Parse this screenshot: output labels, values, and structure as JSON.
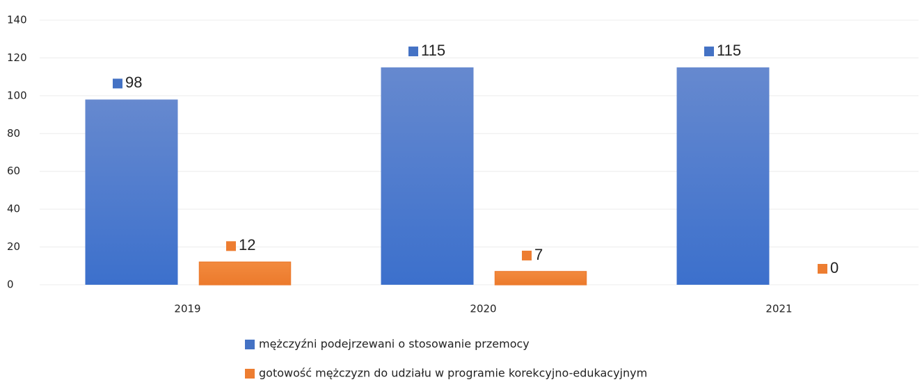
{
  "chart_data": {
    "type": "bar",
    "categories": [
      "2019",
      "2020",
      "2021"
    ],
    "series": [
      {
        "name": "mężczyźni podejrzewani o stosowanie przemocy",
        "color": "#4472c4",
        "values": [
          98,
          115,
          115
        ]
      },
      {
        "name": "gotowość mężczyzn do udziału w programie korekcyjno-edukacyjnym",
        "color": "#ed7d31",
        "values": [
          12,
          7,
          0
        ]
      }
    ],
    "ylim": [
      0,
      140
    ],
    "yticks": [
      0,
      20,
      40,
      60,
      80,
      100,
      120,
      140
    ],
    "grid": true,
    "legend": "bottom"
  }
}
